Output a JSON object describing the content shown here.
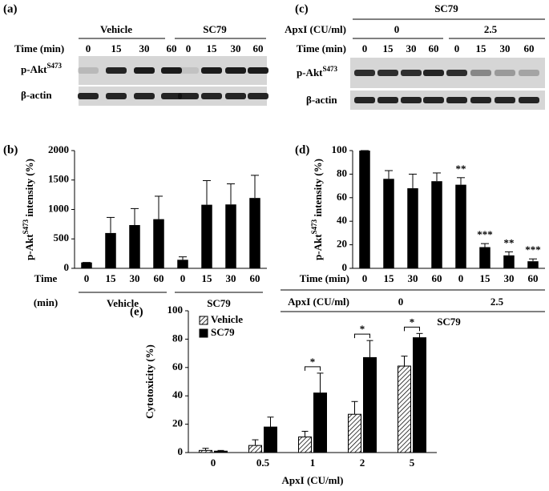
{
  "blots": [
    {
      "label": "(a)",
      "groups": [
        "Vehicle",
        "SC79"
      ],
      "time_label": "Time (min)",
      "lanes": [
        "0",
        "15",
        "30",
        "60",
        "0",
        "15",
        "30",
        "60"
      ],
      "row1": "p-Akt",
      "row1_sup": "S473",
      "row2": "β-actin"
    },
    {
      "label": "(c)",
      "top": "SC79",
      "treatment_label": "ApxI (CU/ml)",
      "groups": [
        "0",
        "2.5"
      ],
      "time_label": "Time (min)",
      "lanes": [
        "0",
        "15",
        "30",
        "60",
        "0",
        "15",
        "30",
        "60"
      ],
      "row1": "p-Akt",
      "row1_sup": "S473",
      "row2": "β-actin"
    }
  ],
  "chart_data": [
    {
      "type": "bar",
      "label": "(b)",
      "ylabel": "p-Akt",
      "ylabel_sup": "S473",
      "ylabel_rest": " intensity (%)",
      "categories": [
        "0",
        "15",
        "30",
        "60",
        "0",
        "15",
        "30",
        "60"
      ],
      "values": [
        100,
        600,
        735,
        835,
        145,
        1080,
        1085,
        1195
      ],
      "errors": [
        0,
        265,
        280,
        390,
        50,
        410,
        350,
        385
      ],
      "color": "#000000",
      "ylim": [
        0,
        2000
      ],
      "yticks": [
        0,
        500,
        1000,
        1500,
        2000
      ],
      "x_row_labels": [
        "Time",
        "(min)"
      ],
      "groups": [
        "Vehicle",
        "SC79"
      ]
    },
    {
      "type": "bar",
      "label": "(d)",
      "ylabel": "p-Akt",
      "ylabel_sup": "S473",
      "ylabel_rest": " intensity (%)",
      "categories": [
        "0",
        "15",
        "30",
        "60",
        "0",
        "15",
        "30",
        "60"
      ],
      "values": [
        100,
        76,
        68,
        74,
        71,
        18,
        11,
        6
      ],
      "errors": [
        0,
        7,
        12,
        7,
        6,
        3,
        3,
        2
      ],
      "significance": [
        null,
        null,
        null,
        null,
        "**",
        "***",
        "**",
        "***"
      ],
      "color": "#000000",
      "ylim": [
        0,
        100
      ],
      "yticks": [
        0,
        20,
        40,
        60,
        80,
        100
      ],
      "x_row_labels": [
        "Time (min)",
        "ApxI (CU/ml)"
      ],
      "groups": [
        "0",
        "2.5"
      ],
      "group_title": "SC79"
    },
    {
      "type": "grouped_bar",
      "label": "(e)",
      "ylabel": "Cytotoxicity (%)",
      "xlabel": "ApxI (CU/ml)",
      "categories": [
        "0",
        "0.5",
        "1",
        "2",
        "5"
      ],
      "series": [
        {
          "name": "Vehicle",
          "color": "#ffffff",
          "hatch": true,
          "values": [
            1.5,
            5,
            11,
            27,
            61
          ],
          "errors": [
            1.5,
            4,
            4,
            9,
            7
          ]
        },
        {
          "name": "SC79",
          "color": "#000000",
          "hatch": false,
          "values": [
            1,
            18,
            42,
            67,
            81
          ],
          "errors": [
            0.5,
            7,
            14,
            12,
            3
          ]
        }
      ],
      "significance": [
        null,
        null,
        "*",
        "*",
        "*"
      ],
      "ylim": [
        0,
        100
      ],
      "yticks": [
        0,
        20,
        40,
        60,
        80,
        100
      ],
      "legend": "upper left"
    }
  ]
}
